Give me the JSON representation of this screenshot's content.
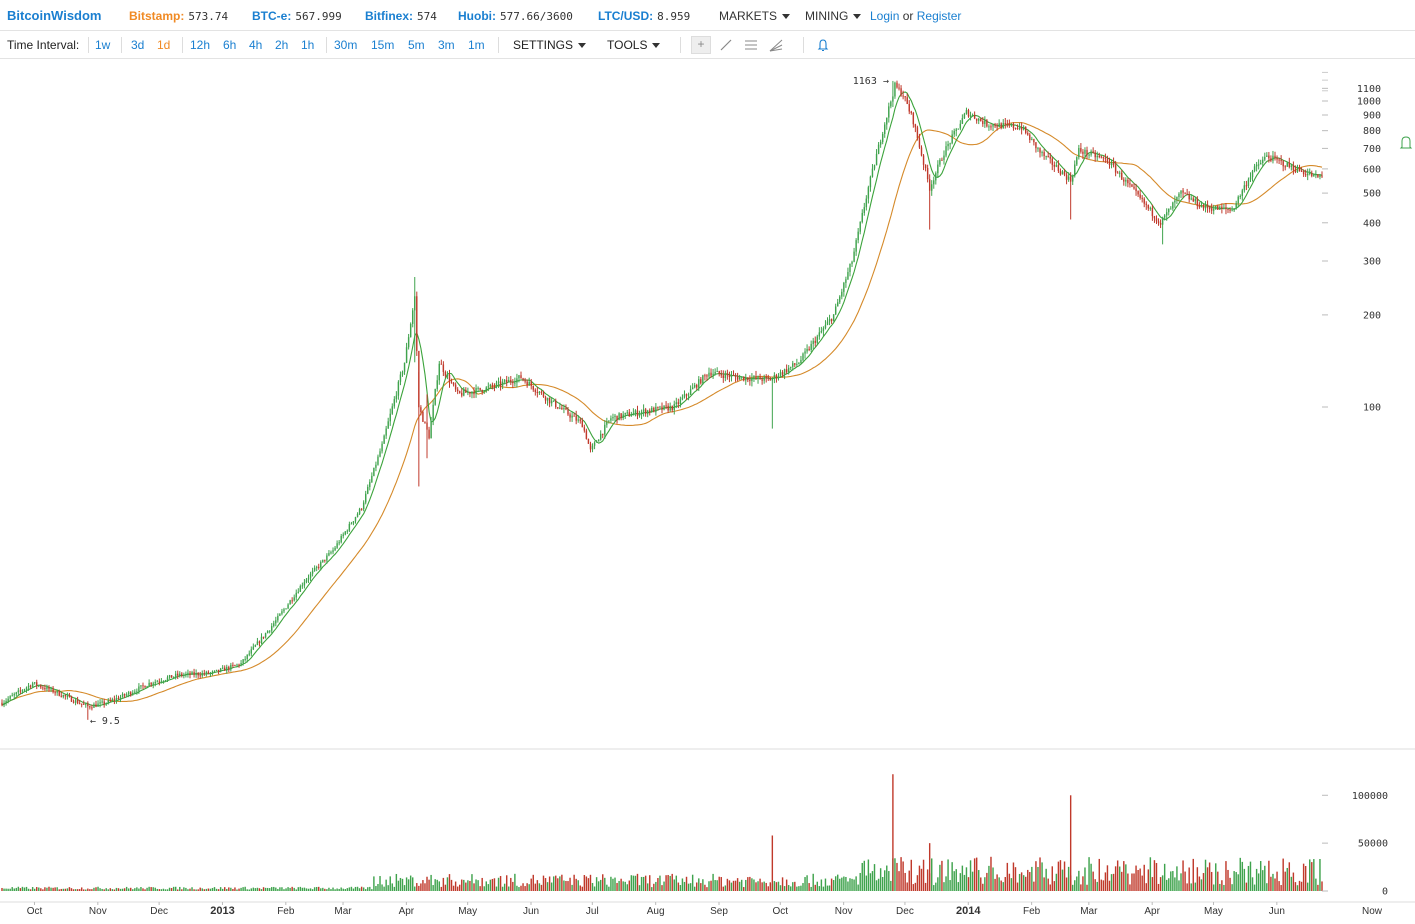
{
  "header": {
    "brand": "BitcoinWisdom",
    "tickers": [
      {
        "label": "Bitstamp:",
        "value": "573.74",
        "color": "#f08a24"
      },
      {
        "label": "BTC-e:",
        "value": "567.999",
        "color": "#1a7fd0"
      },
      {
        "label": "Bitfinex:",
        "value": "574",
        "color": "#1a7fd0"
      },
      {
        "label": "Huobi:",
        "value": "577.66/3600",
        "color": "#1a7fd0"
      },
      {
        "label": "LTC/USD:",
        "value": "8.959",
        "color": "#1a7fd0"
      }
    ],
    "menus": {
      "markets": "MARKETS",
      "mining": "MINING"
    },
    "login": "Login",
    "or": "or",
    "register": "Register"
  },
  "toolbar": {
    "label": "Time Interval:",
    "intervals": [
      "1w",
      "3d",
      "1d",
      "12h",
      "6h",
      "4h",
      "2h",
      "1h",
      "30m",
      "15m",
      "5m",
      "3m",
      "1m"
    ],
    "active_interval": "1d",
    "settings": "SETTINGS",
    "tools": "TOOLS",
    "tool_icons": [
      "crosshair-icon",
      "line-icon",
      "horizontal-lines-icon",
      "fan-icon",
      "bell-icon"
    ]
  },
  "colors": {
    "up": "#3fa34d",
    "down": "#c0392b",
    "ma_fast": "#3ba33b",
    "ma_slow": "#d58a2a",
    "brand": "#1a7fd0",
    "active": "#f08a24"
  },
  "chart_data": [
    {
      "type": "candlestick",
      "scale": "log",
      "price_ticks": [
        "100",
        "200",
        "300",
        "400",
        "500",
        "600",
        "700",
        "800",
        "900",
        "1000",
        "1100"
      ],
      "annotations": {
        "max": "1163 →",
        "min": "← 9.5"
      },
      "months": [
        "Oct",
        "Nov",
        "Dec",
        "2013",
        "Feb",
        "Mar",
        "Apr",
        "May",
        "Jun",
        "Jul",
        "Aug",
        "Sep",
        "Oct",
        "Nov",
        "Dec",
        "2014",
        "Feb",
        "Mar",
        "Apr",
        "May",
        "Jun",
        "Now"
      ],
      "anchors": [
        [
          "2012-09-20",
          10.8
        ],
        [
          "2012-10-05",
          12.5
        ],
        [
          "2012-10-15",
          11.8
        ],
        [
          "2012-10-25",
          11.0
        ],
        [
          "2012-11-01",
          10.5
        ],
        [
          "2012-11-10",
          10.8
        ],
        [
          "2012-11-20",
          11.5
        ],
        [
          "2012-12-01",
          12.5
        ],
        [
          "2012-12-15",
          13.3
        ],
        [
          "2013-01-01",
          13.5
        ],
        [
          "2013-01-15",
          14.5
        ],
        [
          "2013-02-01",
          20
        ],
        [
          "2013-02-15",
          27
        ],
        [
          "2013-03-01",
          34
        ],
        [
          "2013-03-15",
          47
        ],
        [
          "2013-03-25",
          75
        ],
        [
          "2013-04-05",
          140
        ],
        [
          "2013-04-10",
          230
        ],
        [
          "2013-04-12",
          100
        ],
        [
          "2013-04-17",
          80
        ],
        [
          "2013-04-22",
          140
        ],
        [
          "2013-05-01",
          110
        ],
        [
          "2013-05-15",
          115
        ],
        [
          "2013-06-01",
          125
        ],
        [
          "2013-06-15",
          105
        ],
        [
          "2013-07-01",
          88
        ],
        [
          "2013-07-05",
          72
        ],
        [
          "2013-07-15",
          92
        ],
        [
          "2013-08-01",
          97
        ],
        [
          "2013-08-15",
          100
        ],
        [
          "2013-09-01",
          130
        ],
        [
          "2013-09-15",
          125
        ],
        [
          "2013-10-01",
          123
        ],
        [
          "2013-10-15",
          140
        ],
        [
          "2013-11-01",
          200
        ],
        [
          "2013-11-10",
          300
        ],
        [
          "2013-11-18",
          520
        ],
        [
          "2013-11-25",
          800
        ],
        [
          "2013-12-01",
          1120
        ],
        [
          "2013-12-05",
          1050
        ],
        [
          "2013-12-10",
          860
        ],
        [
          "2013-12-18",
          520
        ],
        [
          "2013-12-25",
          680
        ],
        [
          "2014-01-05",
          920
        ],
        [
          "2014-01-15",
          840
        ],
        [
          "2014-02-01",
          820
        ],
        [
          "2014-02-10",
          680
        ],
        [
          "2014-02-25",
          550
        ],
        [
          "2014-03-01",
          690
        ],
        [
          "2014-03-15",
          640
        ],
        [
          "2014-04-01",
          470
        ],
        [
          "2014-04-10",
          400
        ],
        [
          "2014-04-20",
          500
        ],
        [
          "2014-05-01",
          450
        ],
        [
          "2014-05-15",
          440
        ],
        [
          "2014-05-25",
          590
        ],
        [
          "2014-06-01",
          660
        ],
        [
          "2014-06-15",
          600
        ],
        [
          "2014-06-25",
          565
        ]
      ]
    },
    {
      "type": "bar",
      "series_name": "volume",
      "volume_ticks": [
        "0",
        "50000",
        "100000"
      ],
      "max_volume": 140000
    }
  ]
}
